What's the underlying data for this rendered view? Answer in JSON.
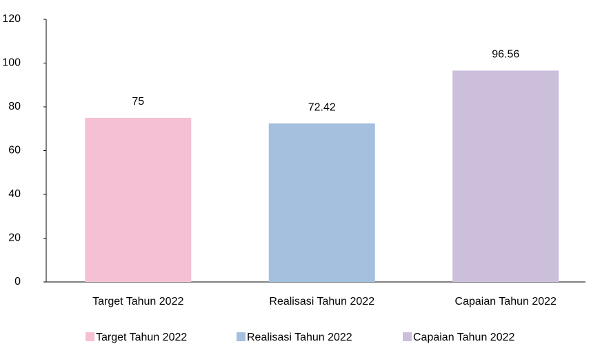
{
  "chart_data": {
    "type": "bar",
    "categories": [
      "Target Tahun 2022",
      "Realisasi Tahun 2022",
      "Capaian Tahun 2022"
    ],
    "values": [
      75,
      72.42,
      96.56
    ],
    "colors": [
      "#f5c0d4",
      "#a5bfdf",
      "#cbbfdc"
    ],
    "ylim": [
      0,
      120
    ],
    "yticks": [
      0,
      20,
      40,
      60,
      80,
      100,
      120
    ],
    "grid": false,
    "legend": "bottom"
  }
}
